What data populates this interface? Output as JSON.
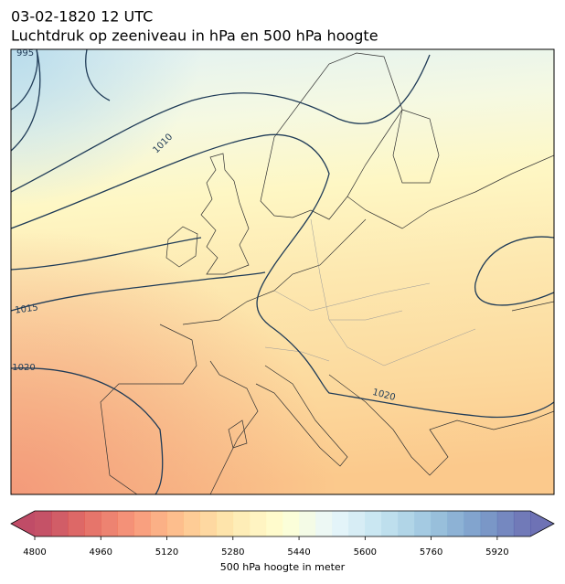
{
  "header": {
    "date": "03-02-1820 12 UTC",
    "title": "Luchtdruk op zeeniveau in hPa en 500 hPa hoogte"
  },
  "map": {
    "contour_labels": [
      995,
      1010,
      1015,
      1020,
      1020
    ]
  },
  "colorbar": {
    "min": 4800,
    "max": 6000,
    "step": 40,
    "ticks": [
      4800,
      4960,
      5120,
      5280,
      5440,
      5600,
      5760,
      5920
    ],
    "colors": [
      "#313695",
      "#4575b4",
      "#74add1",
      "#abd9e9",
      "#e0f3f8",
      "#ffffbf",
      "#fee090",
      "#fdae61",
      "#f46d43",
      "#d73027",
      "#a50026"
    ],
    "opacity": 0.7,
    "label": "500 hPa hoogte in meter"
  }
}
